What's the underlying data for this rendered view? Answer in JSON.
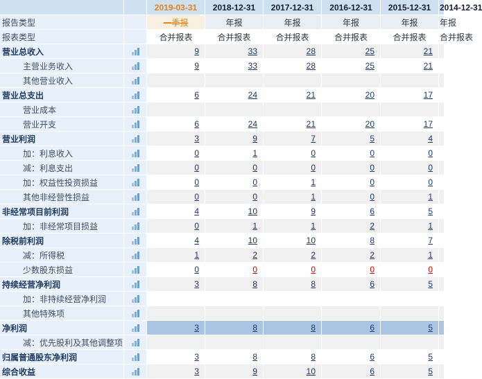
{
  "colors": {
    "header_bg": "#cfe0f1",
    "label_bg": "#e8f1fb",
    "stripe_gray": "#f0f0f0",
    "highlight_blue": "#aac4e3",
    "meta_row_bg": "#e9eef5",
    "q1_cell_bg": "#f8f1e1",
    "accent_orange": "#e5821c",
    "link_navy": "#1a3a6b",
    "link_red": "#d40000"
  },
  "header": {
    "dates": [
      "2019-03-31",
      "2018-12-31",
      "2017-12-31",
      "2016-12-31",
      "2015-12-31"
    ],
    "orange_index": 0,
    "partial_next_date": "2014-12-31"
  },
  "report_type_row": {
    "label": "报告类型",
    "values": [
      "一季报",
      "年报",
      "年报",
      "年报",
      "年报"
    ],
    "partial_next": "年报"
  },
  "statement_type_row": {
    "label": "报表类型",
    "values": [
      "合并报表",
      "合并报表",
      "合并报表",
      "合并报表",
      "合并报表"
    ],
    "partial_next": "合并报表"
  },
  "icons": {
    "row_chart_icon": "bar-chart-icon"
  },
  "rows": [
    {
      "label": "营业总收入",
      "bold": true,
      "indent": false,
      "stripe": "gray",
      "values": [
        "9",
        "33",
        "28",
        "25",
        "21"
      ],
      "red": []
    },
    {
      "label": "主营业务收入",
      "bold": false,
      "indent": true,
      "stripe": "white",
      "values": [
        "9",
        "33",
        "28",
        "25",
        "21"
      ],
      "red": []
    },
    {
      "label": "其他营业收入",
      "bold": false,
      "indent": true,
      "stripe": "gray",
      "values": [
        "",
        "",
        "",
        "",
        ""
      ],
      "red": []
    },
    {
      "label": "营业总支出",
      "bold": true,
      "indent": false,
      "stripe": "white",
      "values": [
        "6",
        "24",
        "21",
        "20",
        "17"
      ],
      "red": []
    },
    {
      "label": "营业成本",
      "bold": false,
      "indent": true,
      "stripe": "gray",
      "values": [
        "",
        "",
        "",
        "",
        ""
      ],
      "red": []
    },
    {
      "label": "营业开支",
      "bold": false,
      "indent": true,
      "stripe": "white",
      "values": [
        "6",
        "24",
        "21",
        "20",
        "17"
      ],
      "red": []
    },
    {
      "label": "营业利润",
      "bold": true,
      "indent": false,
      "stripe": "gray",
      "values": [
        "3",
        "9",
        "7",
        "5",
        "4"
      ],
      "red": []
    },
    {
      "label": "加：利息收入",
      "bold": false,
      "indent": true,
      "stripe": "white",
      "values": [
        "0",
        "1",
        "0",
        "0",
        "0"
      ],
      "red": []
    },
    {
      "label": "减：利息支出",
      "bold": false,
      "indent": true,
      "stripe": "gray",
      "values": [
        "0",
        "0",
        "0",
        "0",
        "0"
      ],
      "red": []
    },
    {
      "label": "加：权益性投资损益",
      "bold": false,
      "indent": true,
      "stripe": "white",
      "values": [
        "0",
        "0",
        "1",
        "0",
        "0"
      ],
      "red": []
    },
    {
      "label": "其他非经营性损益",
      "bold": false,
      "indent": true,
      "stripe": "gray",
      "values": [
        "0",
        "0",
        "1",
        "0",
        "1"
      ],
      "red": []
    },
    {
      "label": "非经常项目前利润",
      "bold": true,
      "indent": false,
      "stripe": "white",
      "values": [
        "4",
        "10",
        "9",
        "6",
        "5"
      ],
      "red": []
    },
    {
      "label": "加：非经常项目损益",
      "bold": false,
      "indent": true,
      "stripe": "gray",
      "values": [
        "0",
        "1",
        "1",
        "2",
        "1"
      ],
      "red": []
    },
    {
      "label": "除税前利润",
      "bold": true,
      "indent": false,
      "stripe": "white",
      "values": [
        "4",
        "10",
        "10",
        "8",
        "7"
      ],
      "red": []
    },
    {
      "label": "减：所得税",
      "bold": false,
      "indent": true,
      "stripe": "gray",
      "values": [
        "1",
        "2",
        "2",
        "2",
        "1"
      ],
      "red": []
    },
    {
      "label": "少数股东损益",
      "bold": false,
      "indent": true,
      "stripe": "white",
      "values": [
        "0",
        "0",
        "0",
        "0",
        "0"
      ],
      "red": [
        1,
        2,
        3,
        4
      ]
    },
    {
      "label": "持续经营净利润",
      "bold": true,
      "indent": false,
      "stripe": "gray",
      "values": [
        "3",
        "8",
        "8",
        "6",
        "5"
      ],
      "red": []
    },
    {
      "label": "加：非持续经营净利润",
      "bold": false,
      "indent": true,
      "stripe": "white",
      "values": [
        "",
        "",
        "",
        "",
        ""
      ],
      "red": []
    },
    {
      "label": "其他特殊项",
      "bold": false,
      "indent": true,
      "stripe": "gray",
      "values": [
        "",
        "",
        "",
        "",
        ""
      ],
      "red": []
    },
    {
      "label": "净利润",
      "bold": true,
      "indent": false,
      "stripe": "blue",
      "values": [
        "3",
        "8",
        "8",
        "6",
        "5"
      ],
      "red": []
    },
    {
      "label": "减：优先股利及其他调整项",
      "bold": false,
      "indent": true,
      "stripe": "gray",
      "values": [
        "",
        "",
        "",
        "",
        ""
      ],
      "red": []
    },
    {
      "label": "归属普通股东净利润",
      "bold": true,
      "indent": false,
      "stripe": "white",
      "values": [
        "3",
        "8",
        "8",
        "6",
        "5"
      ],
      "red": []
    },
    {
      "label": "综合收益",
      "bold": true,
      "indent": false,
      "stripe": "gray",
      "values": [
        "3",
        "9",
        "10",
        "6",
        "5"
      ],
      "red": []
    }
  ]
}
